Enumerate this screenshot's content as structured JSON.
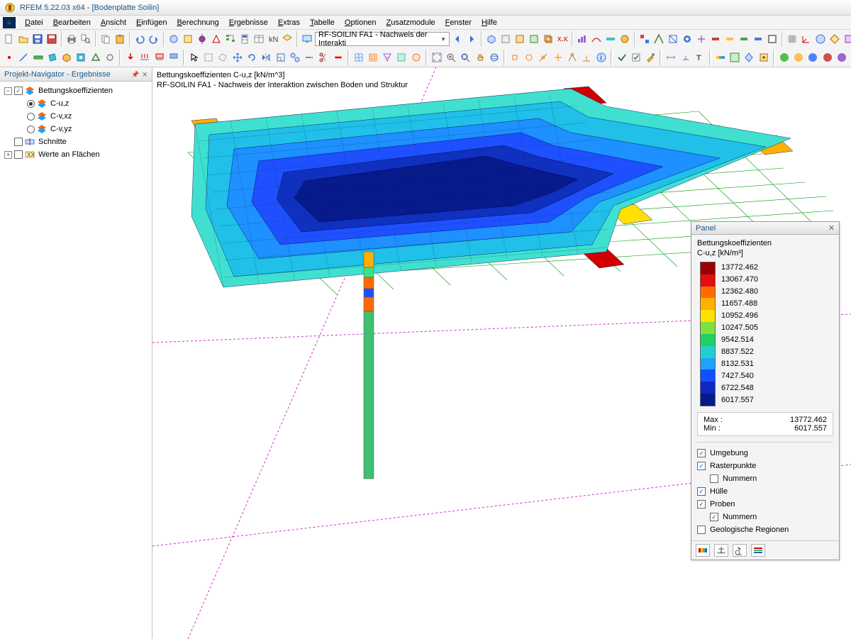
{
  "app": {
    "title": "RFEM 5.22.03 x64 - [Bodenplatte Soilin]",
    "menus": [
      "Datei",
      "Bearbeiten",
      "Ansicht",
      "Einfügen",
      "Berechnung",
      "Ergebnisse",
      "Extras",
      "Tabelle",
      "Optionen",
      "Zusatzmodule",
      "Fenster",
      "Hilfe"
    ],
    "combo_label": "RF-SOILIN FA1 - Nachweis der Interakti"
  },
  "navigator": {
    "title": "Projekt-Navigator - Ergebnisse",
    "root": {
      "label": "Bettungskoeffizienten",
      "checked": true,
      "expanded": true
    },
    "children": [
      {
        "label": "C-u,z",
        "selected": true
      },
      {
        "label": "C-v,xz",
        "selected": false
      },
      {
        "label": "C-v,yz",
        "selected": false
      }
    ],
    "schnitte": {
      "label": "Schnitte",
      "checked": false
    },
    "werte": {
      "label": "Werte an Flächen",
      "checked": false
    }
  },
  "viewport": {
    "caption1": "Bettungskoeffizienten C-u,z [kN/m^3]",
    "caption2": "RF-SOILIN FA1 - Nachweis der Interaktion zwischen Boden und Struktur",
    "grid_color": "#009900",
    "guide_color": "#cc33cc",
    "contour_colors": {
      "c1": "#071a8c",
      "c2": "#1030c0",
      "c3": "#1e50ff",
      "c4": "#1e90ff",
      "c5": "#20c0e8",
      "c6": "#40e0d0",
      "c7": "#40e080",
      "c8": "#80e040",
      "c9": "#e0e020",
      "c10": "#ffb000",
      "c11": "#ff6a00",
      "c12": "#d00000"
    },
    "borehole_colors": [
      "#ffb000",
      "#40e080",
      "#ff6a00",
      "#1e50ff",
      "#ff6a00",
      "#40e080",
      "#40e080",
      "#40e080",
      "#40e080",
      "#40e080",
      "#40e080",
      "#40e080"
    ]
  },
  "panel": {
    "title": "Panel",
    "heading1": "Bettungskoeffizienten",
    "heading2": "C-u,z [kN/m³]",
    "legend": [
      {
        "color": "#990000",
        "label": "13772.462"
      },
      {
        "color": "#e01010",
        "label": "13067.470"
      },
      {
        "color": "#ff6a00",
        "label": "12362.480"
      },
      {
        "color": "#ffb000",
        "label": "11657.488"
      },
      {
        "color": "#ffe000",
        "label": "10952.496"
      },
      {
        "color": "#80e040",
        "label": "10247.505"
      },
      {
        "color": "#20d060",
        "label": "9542.514"
      },
      {
        "color": "#20d0d0",
        "label": "8837.522"
      },
      {
        "color": "#20a0ff",
        "label": "8132.531"
      },
      {
        "color": "#1050ff",
        "label": "7427.540"
      },
      {
        "color": "#1028c0",
        "label": "6722.548"
      },
      {
        "color": "#071a8c",
        "label": "6017.557"
      }
    ],
    "max_label": "Max  :",
    "max_value": "13772.462",
    "min_label": "Min   :",
    "min_value": "6017.557",
    "options": [
      {
        "label": "Umgebung",
        "checked": true,
        "indent": false
      },
      {
        "label": "Rasterpunkte",
        "checked": true,
        "indent": false
      },
      {
        "label": "Nummern",
        "checked": false,
        "indent": true
      },
      {
        "label": "Hülle",
        "checked": true,
        "indent": false
      },
      {
        "label": "Proben",
        "checked": true,
        "indent": false
      },
      {
        "label": "Nummern",
        "checked": true,
        "indent": true
      },
      {
        "label": "Geologische Regionen",
        "checked": false,
        "indent": false
      }
    ]
  }
}
